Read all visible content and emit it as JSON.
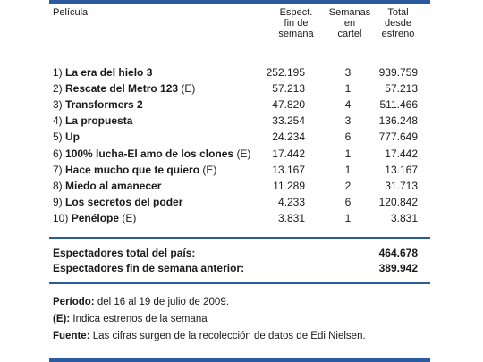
{
  "header": {
    "pelicula": "Película",
    "espect": [
      "Espect.",
      "fin de",
      "semana"
    ],
    "semanas": [
      "Semanas",
      "en",
      "cartel"
    ],
    "total": [
      "Total",
      "desde",
      "estreno"
    ]
  },
  "rows": [
    {
      "num": "1)",
      "title": "La era del hielo 3",
      "tag": "",
      "espect": "252.195",
      "semanas": "3",
      "total": "939.759"
    },
    {
      "num": "2)",
      "title": "Rescate del Metro 123",
      "tag": "(E)",
      "espect": "57.213",
      "semanas": "1",
      "total": "57.213"
    },
    {
      "num": "3)",
      "title": "Transformers 2",
      "tag": "",
      "espect": "47.820",
      "semanas": "4",
      "total": "511.466"
    },
    {
      "num": "4)",
      "title": "La propuesta",
      "tag": "",
      "espect": "33.254",
      "semanas": "3",
      "total": "136.248"
    },
    {
      "num": "5)",
      "title": "Up",
      "tag": "",
      "espect": "24.234",
      "semanas": "6",
      "total": "777.649"
    },
    {
      "num": "6)",
      "title": "100% lucha-El amo de los clones",
      "tag": "(E)",
      "espect": "17.442",
      "semanas": "1",
      "total": "17.442"
    },
    {
      "num": "7)",
      "title": "Hace mucho que te quiero",
      "tag": "(E)",
      "espect": "13.167",
      "semanas": "1",
      "total": "13.167"
    },
    {
      "num": "8)",
      "title": "Miedo al amanecer",
      "tag": "",
      "espect": "11.289",
      "semanas": "2",
      "total": "31.713"
    },
    {
      "num": "9)",
      "title": "Los secretos del poder",
      "tag": "",
      "espect": "4.233",
      "semanas": "6",
      "total": "120.842"
    },
    {
      "num": "10)",
      "title": "Penélope",
      "tag": "(E)",
      "espect": "3.831",
      "semanas": "1",
      "total": "3.831"
    }
  ],
  "summary": {
    "total_label": "Espectadores total del país:",
    "total_value": "464.678",
    "prev_label": "Espectadores fin de semana anterior:",
    "prev_value": "389.942"
  },
  "notes": {
    "periodo_label": "Período:",
    "periodo_text": "del 16 al 19 de julio de 2009.",
    "e_label": "(E):",
    "e_text": "Indica estrenos de la semana",
    "fuente_label": "Fuente:",
    "fuente_text": "Las cifras surgen de la recolección de datos de Edi Nielsen."
  },
  "colors": {
    "rule": "#2a5aa0"
  }
}
